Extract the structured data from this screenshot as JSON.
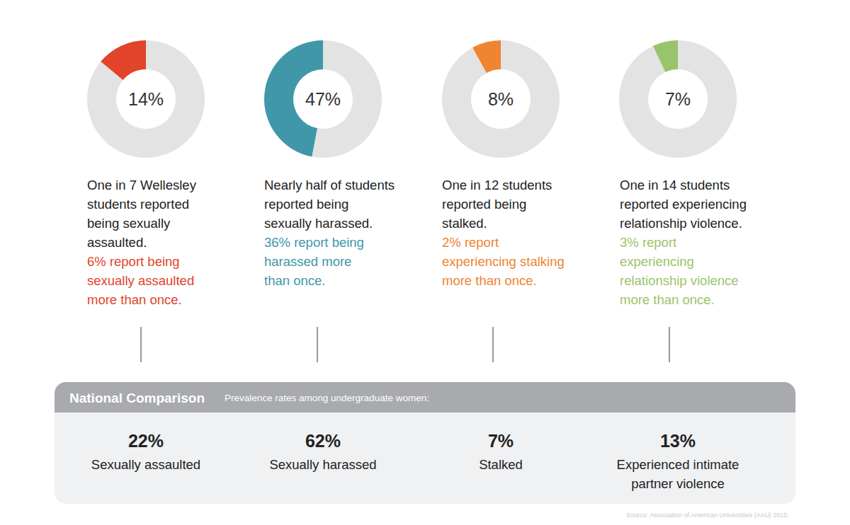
{
  "chart_data": [
    {
      "type": "pie",
      "values": [
        14,
        86
      ],
      "colors": [
        "#e2432b",
        "#e3e3e3"
      ],
      "value_labels": [
        "14%",
        null
      ],
      "title": [
        "One in 7 Wellesley",
        "students reported",
        "being sexually",
        "assaulted."
      ],
      "subtitle": [
        "6% report being",
        "sexually assaulted",
        "more than once."
      ]
    },
    {
      "type": "pie",
      "values": [
        47,
        53
      ],
      "colors": [
        "#4097aa",
        "#e3e3e3"
      ],
      "value_labels": [
        "47%",
        null
      ],
      "title": [
        "Nearly half of students",
        "reported being",
        "sexually harassed."
      ],
      "subtitle": [
        "36% report being",
        "harassed more",
        "than once."
      ]
    },
    {
      "type": "pie",
      "values": [
        8,
        92
      ],
      "colors": [
        "#ef8431",
        "#e3e3e3"
      ],
      "value_labels": [
        "8%",
        null
      ],
      "title": [
        "One in 12 students",
        "reported being",
        "stalked."
      ],
      "subtitle": [
        "2% report",
        "experiencing stalking",
        "more than once."
      ]
    },
    {
      "type": "pie",
      "values": [
        7,
        93
      ],
      "colors": [
        "#9ac46b",
        "#e3e3e3"
      ],
      "value_labels": [
        "7%",
        null
      ],
      "title": [
        "One in 14 students",
        "reported experiencing",
        "relationship violence."
      ],
      "subtitle": [
        "3% report",
        "experiencing",
        "relationship violence",
        "more than once."
      ]
    }
  ],
  "national_comparison": {
    "title": "National Comparison",
    "subtitle": "Prevalence rates among undergraduate women:",
    "items": [
      {
        "value": "22%",
        "label": [
          "Sexually assaulted"
        ]
      },
      {
        "value": "62%",
        "label": [
          "Sexually harassed"
        ]
      },
      {
        "value": "7%",
        "label": [
          "Stalked"
        ]
      },
      {
        "value": "13%",
        "label": [
          "Experienced intimate",
          "partner violence"
        ]
      }
    ]
  },
  "source": "Source: Association of American Universities (AAU) 2015."
}
